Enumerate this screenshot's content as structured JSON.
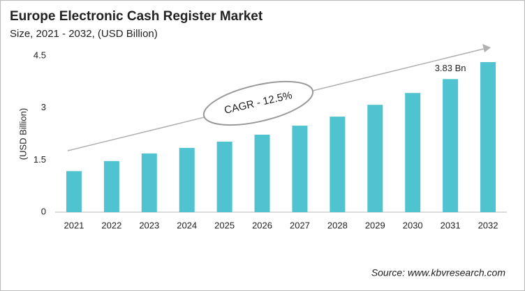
{
  "chart_data": {
    "type": "bar",
    "title": "Europe Electronic Cash Register Market",
    "subtitle": "Size, 2021 - 2032, (USD Billion)",
    "y_label": "(USD Billion)",
    "annotation": "CAGR - 12.5%",
    "source": "Source: www.kbvresearch.com",
    "categories": [
      "2021",
      "2022",
      "2023",
      "2024",
      "2025",
      "2026",
      "2027",
      "2028",
      "2029",
      "2030",
      "2031",
      "2032"
    ],
    "values": [
      1.18,
      1.47,
      1.69,
      1.85,
      2.03,
      2.23,
      2.49,
      2.75,
      3.09,
      3.43,
      3.83,
      4.32
    ],
    "value_labels": [
      null,
      null,
      null,
      null,
      null,
      null,
      null,
      null,
      null,
      null,
      "3.83 Bn",
      null
    ],
    "color": "#4fc3cf",
    "ylim": [
      0,
      4.5
    ],
    "yticks": [
      0,
      1.5,
      3,
      4.5
    ],
    "grid": false
  }
}
